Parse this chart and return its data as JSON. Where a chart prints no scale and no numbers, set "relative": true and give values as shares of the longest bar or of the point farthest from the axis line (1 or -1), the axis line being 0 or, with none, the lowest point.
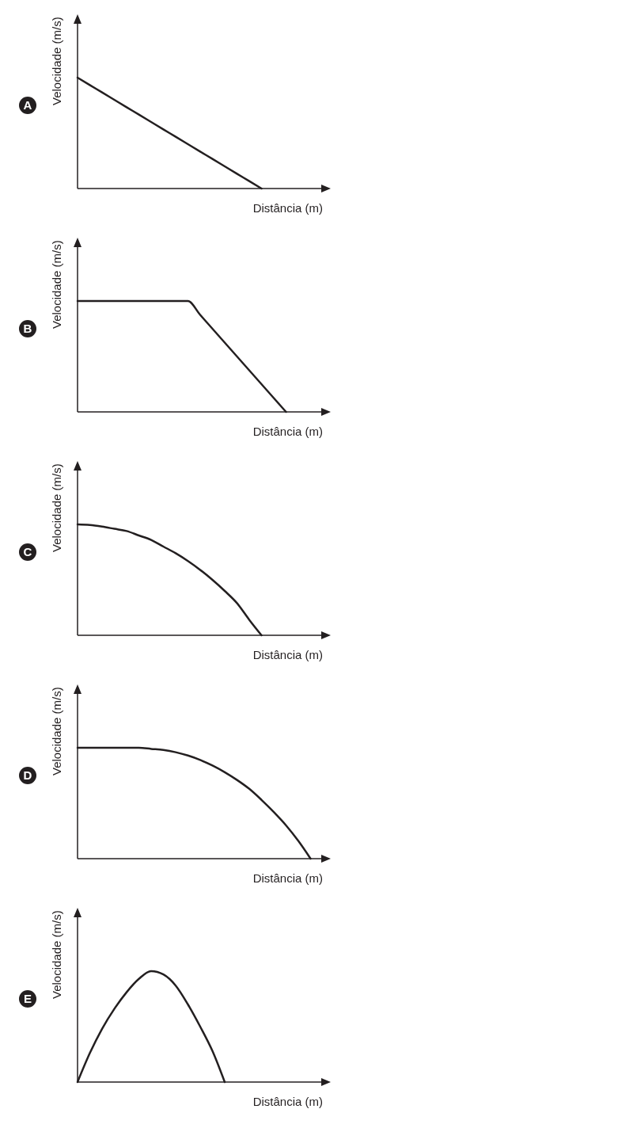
{
  "chart_data": [
    {
      "type": "line",
      "title": "A",
      "xlabel": "Distância (m)",
      "ylabel": "Velocidade (m/s)",
      "relative": true,
      "marker": "none",
      "categories": [
        null,
        null,
        null,
        null,
        null,
        null,
        null,
        null,
        null,
        null,
        null,
        null,
        null,
        null,
        null,
        null,
        null,
        null,
        null,
        null,
        null
      ],
      "series": [
        {
          "color": "#231f20",
          "values": [
            1,
            0.933,
            0.867,
            0.8,
            0.733,
            0.667,
            0.6,
            0.533,
            0.467,
            0.4,
            0.333,
            0.267,
            0.2,
            0.133,
            0.067,
            0,
            null,
            null,
            null,
            null,
            null
          ]
        }
      ]
    },
    {
      "type": "line",
      "title": "B",
      "xlabel": "Distância (m)",
      "ylabel": "Velocidade (m/s)",
      "relative": true,
      "marker": "none",
      "categories": [
        null,
        null,
        null,
        null,
        null,
        null,
        null,
        null,
        null,
        null,
        null,
        null,
        null,
        null,
        null,
        null,
        null,
        null,
        null,
        null,
        null
      ],
      "series": [
        {
          "color": "#231f20",
          "values": [
            1,
            1,
            1,
            1,
            1,
            1,
            1,
            1,
            1,
            1,
            0.875,
            0.75,
            0.625,
            0.5,
            0.375,
            0.25,
            0.125,
            0,
            null,
            null,
            null
          ]
        }
      ]
    },
    {
      "type": "line",
      "title": "C",
      "xlabel": "Distância (m)",
      "ylabel": "Velocidade (m/s)",
      "relative": true,
      "marker": "none",
      "categories": [
        null,
        null,
        null,
        null,
        null,
        null,
        null,
        null,
        null,
        null,
        null,
        null,
        null,
        null,
        null,
        null,
        null,
        null,
        null,
        null,
        null
      ],
      "series": [
        {
          "color": "#231f20",
          "values": [
            1,
            0.995,
            0.98,
            0.96,
            0.94,
            0.9,
            0.86,
            0.8,
            0.74,
            0.67,
            0.59,
            0.5,
            0.4,
            0.29,
            0.14,
            0,
            null,
            null,
            null,
            null,
            null
          ]
        }
      ]
    },
    {
      "type": "line",
      "title": "D",
      "xlabel": "Distância (m)",
      "ylabel": "Velocidade (m/s)",
      "relative": true,
      "marker": "none",
      "categories": [
        null,
        null,
        null,
        null,
        null,
        null,
        null,
        null,
        null,
        null,
        null,
        null,
        null,
        null,
        null,
        null,
        null,
        null,
        null,
        null,
        null
      ],
      "series": [
        {
          "color": "#231f20",
          "values": [
            1,
            1,
            1,
            1,
            1,
            1,
            0.99,
            0.98,
            0.96,
            0.93,
            0.89,
            0.84,
            0.78,
            0.71,
            0.63,
            0.53,
            0.42,
            0.3,
            0.16,
            0,
            null
          ]
        }
      ]
    },
    {
      "type": "line",
      "title": "E",
      "xlabel": "Distância (m)",
      "ylabel": "Velocidade (m/s)",
      "relative": true,
      "marker": "none",
      "categories": [
        null,
        null,
        null,
        null,
        null,
        null,
        null,
        null,
        null,
        null,
        null,
        null,
        null,
        null,
        null,
        null,
        null,
        null,
        null,
        null,
        null
      ],
      "series": [
        {
          "color": "#231f20",
          "values": [
            0,
            0.26,
            0.48,
            0.66,
            0.81,
            0.93,
            1,
            0.97,
            0.87,
            0.7,
            0.5,
            0.28,
            0,
            null,
            null,
            null,
            null,
            null,
            null,
            null,
            null
          ]
        }
      ]
    }
  ]
}
